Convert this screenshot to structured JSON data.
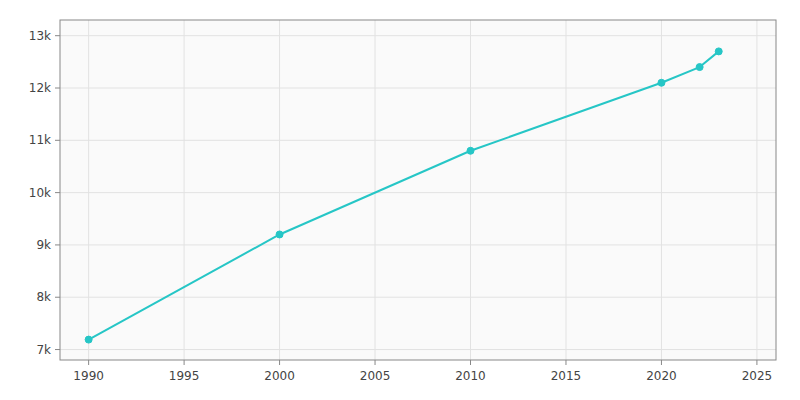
{
  "chart_data": {
    "type": "line",
    "x": [
      1990,
      2000,
      2010,
      2020,
      2022,
      2023
    ],
    "values": [
      7190,
      9200,
      10800,
      12100,
      12400,
      12700
    ],
    "color": "#26C6C6",
    "marker": "circle",
    "xlim": [
      1988.5,
      2026
    ],
    "ylim": [
      6800,
      13300
    ],
    "xticks": [
      1990,
      1995,
      2000,
      2005,
      2010,
      2015,
      2020,
      2025
    ],
    "yticks": [
      {
        "value": 7000,
        "label": "7k"
      },
      {
        "value": 8000,
        "label": "8k"
      },
      {
        "value": 9000,
        "label": "9k"
      },
      {
        "value": 10000,
        "label": "10k"
      },
      {
        "value": 11000,
        "label": "11k"
      },
      {
        "value": 12000,
        "label": "12k"
      },
      {
        "value": 13000,
        "label": "13k"
      }
    ],
    "grid": true
  }
}
